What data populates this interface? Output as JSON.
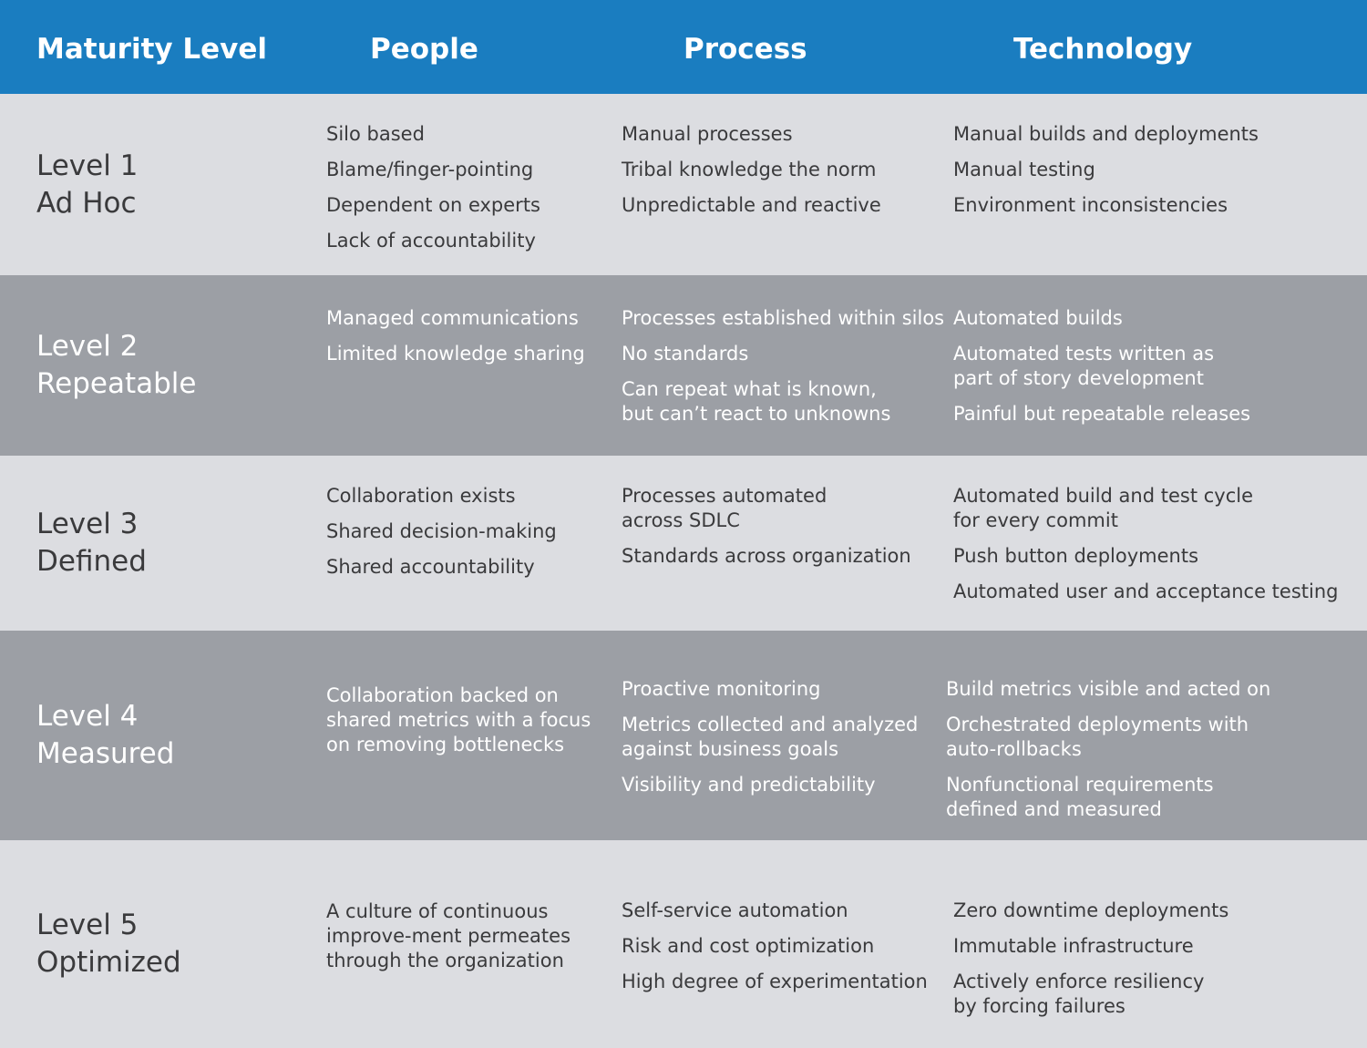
{
  "header": [
    "Maturity Level",
    "People",
    "Process",
    "Technology"
  ],
  "rows": [
    {
      "level": "Level 1",
      "name": "Ad Hoc",
      "people": [
        "Silo based",
        "Blame/finger-pointing",
        "Dependent on experts",
        "Lack of accountability"
      ],
      "process": [
        "Manual processes",
        "Tribal knowledge the norm",
        "Unpredictable and reactive"
      ],
      "technology": [
        "Manual builds and deployments",
        "Manual testing",
        "Environment inconsistencies"
      ]
    },
    {
      "level": "Level 2",
      "name": "Repeatable",
      "people": [
        "Managed communications",
        "Limited knowledge sharing"
      ],
      "process": [
        "Processes established within silos",
        "No standards",
        "Can repeat what is known,\nbut can’t react to unknowns"
      ],
      "technology": [
        "Automated builds",
        "Automated tests written as\npart of story development",
        "Painful but repeatable releases"
      ]
    },
    {
      "level": "Level 3",
      "name": "Defined",
      "people": [
        "Collaboration exists",
        "Shared decision-making",
        "Shared accountability"
      ],
      "process": [
        "Processes automated\nacross SDLC",
        "Standards across organization"
      ],
      "technology": [
        "Automated build and test cycle\nfor every commit",
        "Push button deployments",
        "Automated user and acceptance testing"
      ]
    },
    {
      "level": "Level 4",
      "name": "Measured",
      "people": [
        "Collaboration backed on\nshared metrics with a focus\non removing bottlenecks"
      ],
      "process": [
        "Proactive monitoring",
        "Metrics collected and analyzed\nagainst business goals",
        "Visibility and predictability"
      ],
      "technology": [
        "Build metrics visible and acted on",
        "Orchestrated deployments with\nauto-rollbacks",
        "Nonfunctional requirements\ndefined and measured"
      ]
    },
    {
      "level": "Level 5",
      "name": "Optimized",
      "people": [
        "A culture of continuous\nimprove-ment permeates\nthrough the organization"
      ],
      "process": [
        "Self-service automation",
        "Risk and cost optimization",
        "High degree of experimentation"
      ],
      "technology": [
        "Zero downtime deployments",
        "Immutable infrastructure",
        "Actively enforce resiliency\nby forcing failures"
      ]
    }
  ]
}
